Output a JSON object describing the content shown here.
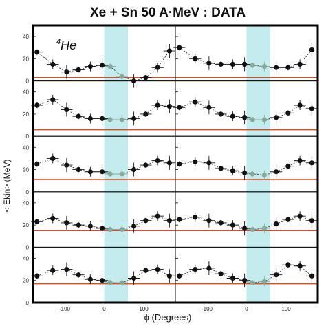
{
  "chart_data": {
    "type": "scatter",
    "title": "Xe + Sn 50 A·MeV : DATA",
    "xlabel": "ϕ (Degrees)",
    "ylabel": "< Ekin> (MeV)",
    "particle_label": "He",
    "particle_mass": "4",
    "grid": "5 rows x 2 columns of panels",
    "xlim": [
      -180,
      180
    ],
    "ylim": [
      0,
      45
    ],
    "x_tick_labels": [
      "-100",
      "0",
      "100"
    ],
    "x_ticks": [
      -100,
      0,
      100
    ],
    "y_tick_labels": [
      "0",
      "20",
      "40"
    ],
    "y_ticks": [
      0,
      20,
      40
    ],
    "shaded_bands": [
      [
        0,
        60
      ],
      [
        180,
        240
      ]
    ],
    "reference_color": "#d94a2a",
    "band_color": "#c4ecef",
    "shaded_point_color": "#8aa89a",
    "x": [
      -170,
      -130,
      -95,
      -65,
      -35,
      -5,
      15,
      45,
      75,
      105,
      135,
      165
    ],
    "panels": [
      {
        "row": 1,
        "col": 1,
        "reference": 3,
        "values": [
          26,
          15,
          8,
          10,
          13,
          14,
          13,
          4,
          0,
          3,
          12,
          27
        ]
      },
      {
        "row": 1,
        "col": 2,
        "reference": 3,
        "values": [
          30,
          20,
          16,
          15,
          15,
          15,
          14,
          13,
          12,
          12,
          15,
          28
        ]
      },
      {
        "row": 2,
        "col": 1,
        "reference": 6,
        "values": [
          28,
          33,
          24,
          18,
          16,
          16,
          15,
          15,
          16,
          20,
          28,
          27
        ]
      },
      {
        "row": 2,
        "col": 2,
        "reference": 6,
        "values": [
          26,
          31,
          26,
          20,
          18,
          17,
          15,
          15,
          17,
          21,
          28,
          25
        ]
      },
      {
        "row": 3,
        "col": 1,
        "reference": 11,
        "values": [
          25,
          30,
          24,
          20,
          18,
          18,
          16,
          16,
          20,
          24,
          28,
          26
        ]
      },
      {
        "row": 3,
        "col": 2,
        "reference": 11,
        "values": [
          25,
          27,
          26,
          21,
          19,
          17,
          16,
          15,
          18,
          23,
          28,
          26
        ]
      },
      {
        "row": 4,
        "col": 1,
        "reference": 15,
        "values": [
          23,
          26,
          22,
          20,
          19,
          17,
          16,
          16,
          19,
          24,
          28,
          24
        ]
      },
      {
        "row": 4,
        "col": 2,
        "reference": 15,
        "values": [
          25,
          27,
          24,
          22,
          20,
          17,
          16,
          17,
          21,
          25,
          28,
          24
        ]
      },
      {
        "row": 5,
        "col": 1,
        "reference": 17,
        "values": [
          24,
          29,
          30,
          25,
          21,
          20,
          18,
          18,
          22,
          29,
          30,
          24
        ]
      },
      {
        "row": 5,
        "col": 2,
        "reference": 17,
        "values": [
          24,
          30,
          31,
          26,
          22,
          20,
          18,
          19,
          25,
          34,
          33,
          24
        ]
      }
    ]
  }
}
